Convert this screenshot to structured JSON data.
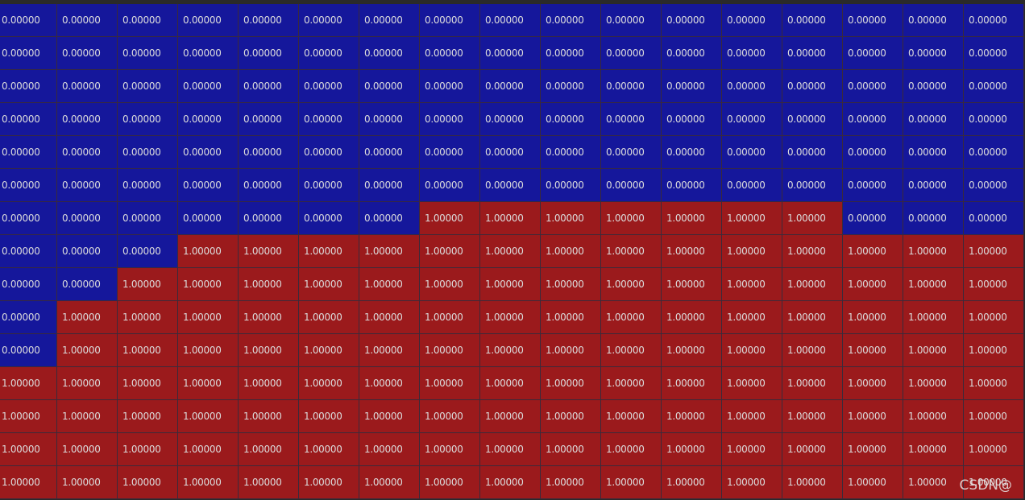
{
  "table": {
    "rows": [
      [
        "0.00000",
        "0.00000",
        "0.00000",
        "0.00000",
        "0.00000",
        "0.00000",
        "0.00000",
        "0.00000",
        "0.00000",
        "0.00000",
        "0.00000",
        "0.00000",
        "0.00000",
        "0.00000",
        "0.00000",
        "0.00000",
        "0.00000"
      ],
      [
        "0.00000",
        "0.00000",
        "0.00000",
        "0.00000",
        "0.00000",
        "0.00000",
        "0.00000",
        "0.00000",
        "0.00000",
        "0.00000",
        "0.00000",
        "0.00000",
        "0.00000",
        "0.00000",
        "0.00000",
        "0.00000",
        "0.00000"
      ],
      [
        "0.00000",
        "0.00000",
        "0.00000",
        "0.00000",
        "0.00000",
        "0.00000",
        "0.00000",
        "0.00000",
        "0.00000",
        "0.00000",
        "0.00000",
        "0.00000",
        "0.00000",
        "0.00000",
        "0.00000",
        "0.00000",
        "0.00000"
      ],
      [
        "0.00000",
        "0.00000",
        "0.00000",
        "0.00000",
        "0.00000",
        "0.00000",
        "0.00000",
        "0.00000",
        "0.00000",
        "0.00000",
        "0.00000",
        "0.00000",
        "0.00000",
        "0.00000",
        "0.00000",
        "0.00000",
        "0.00000"
      ],
      [
        "0.00000",
        "0.00000",
        "0.00000",
        "0.00000",
        "0.00000",
        "0.00000",
        "0.00000",
        "0.00000",
        "0.00000",
        "0.00000",
        "0.00000",
        "0.00000",
        "0.00000",
        "0.00000",
        "0.00000",
        "0.00000",
        "0.00000"
      ],
      [
        "0.00000",
        "0.00000",
        "0.00000",
        "0.00000",
        "0.00000",
        "0.00000",
        "0.00000",
        "0.00000",
        "0.00000",
        "0.00000",
        "0.00000",
        "0.00000",
        "0.00000",
        "0.00000",
        "0.00000",
        "0.00000",
        "0.00000"
      ],
      [
        "0.00000",
        "0.00000",
        "0.00000",
        "0.00000",
        "0.00000",
        "0.00000",
        "0.00000",
        "1.00000",
        "1.00000",
        "1.00000",
        "1.00000",
        "1.00000",
        "1.00000",
        "1.00000",
        "0.00000",
        "0.00000",
        "0.00000"
      ],
      [
        "0.00000",
        "0.00000",
        "0.00000",
        "1.00000",
        "1.00000",
        "1.00000",
        "1.00000",
        "1.00000",
        "1.00000",
        "1.00000",
        "1.00000",
        "1.00000",
        "1.00000",
        "1.00000",
        "1.00000",
        "1.00000",
        "1.00000"
      ],
      [
        "0.00000",
        "0.00000",
        "1.00000",
        "1.00000",
        "1.00000",
        "1.00000",
        "1.00000",
        "1.00000",
        "1.00000",
        "1.00000",
        "1.00000",
        "1.00000",
        "1.00000",
        "1.00000",
        "1.00000",
        "1.00000",
        "1.00000"
      ],
      [
        "0.00000",
        "1.00000",
        "1.00000",
        "1.00000",
        "1.00000",
        "1.00000",
        "1.00000",
        "1.00000",
        "1.00000",
        "1.00000",
        "1.00000",
        "1.00000",
        "1.00000",
        "1.00000",
        "1.00000",
        "1.00000",
        "1.00000"
      ],
      [
        "0.00000",
        "1.00000",
        "1.00000",
        "1.00000",
        "1.00000",
        "1.00000",
        "1.00000",
        "1.00000",
        "1.00000",
        "1.00000",
        "1.00000",
        "1.00000",
        "1.00000",
        "1.00000",
        "1.00000",
        "1.00000",
        "1.00000"
      ],
      [
        "1.00000",
        "1.00000",
        "1.00000",
        "1.00000",
        "1.00000",
        "1.00000",
        "1.00000",
        "1.00000",
        "1.00000",
        "1.00000",
        "1.00000",
        "1.00000",
        "1.00000",
        "1.00000",
        "1.00000",
        "1.00000",
        "1.00000"
      ],
      [
        "1.00000",
        "1.00000",
        "1.00000",
        "1.00000",
        "1.00000",
        "1.00000",
        "1.00000",
        "1.00000",
        "1.00000",
        "1.00000",
        "1.00000",
        "1.00000",
        "1.00000",
        "1.00000",
        "1.00000",
        "1.00000",
        "1.00000"
      ],
      [
        "1.00000",
        "1.00000",
        "1.00000",
        "1.00000",
        "1.00000",
        "1.00000",
        "1.00000",
        "1.00000",
        "1.00000",
        "1.00000",
        "1.00000",
        "1.00000",
        "1.00000",
        "1.00000",
        "1.00000",
        "1.00000",
        "1.00000"
      ],
      [
        "1.00000",
        "1.00000",
        "1.00000",
        "1.00000",
        "1.00000",
        "1.00000",
        "1.00000",
        "1.00000",
        "1.00000",
        "1.00000",
        "1.00000",
        "1.00000",
        "1.00000",
        "1.00000",
        "1.00000",
        "1.00000",
        "1.00000"
      ]
    ]
  },
  "watermark": "CSDN@"
}
